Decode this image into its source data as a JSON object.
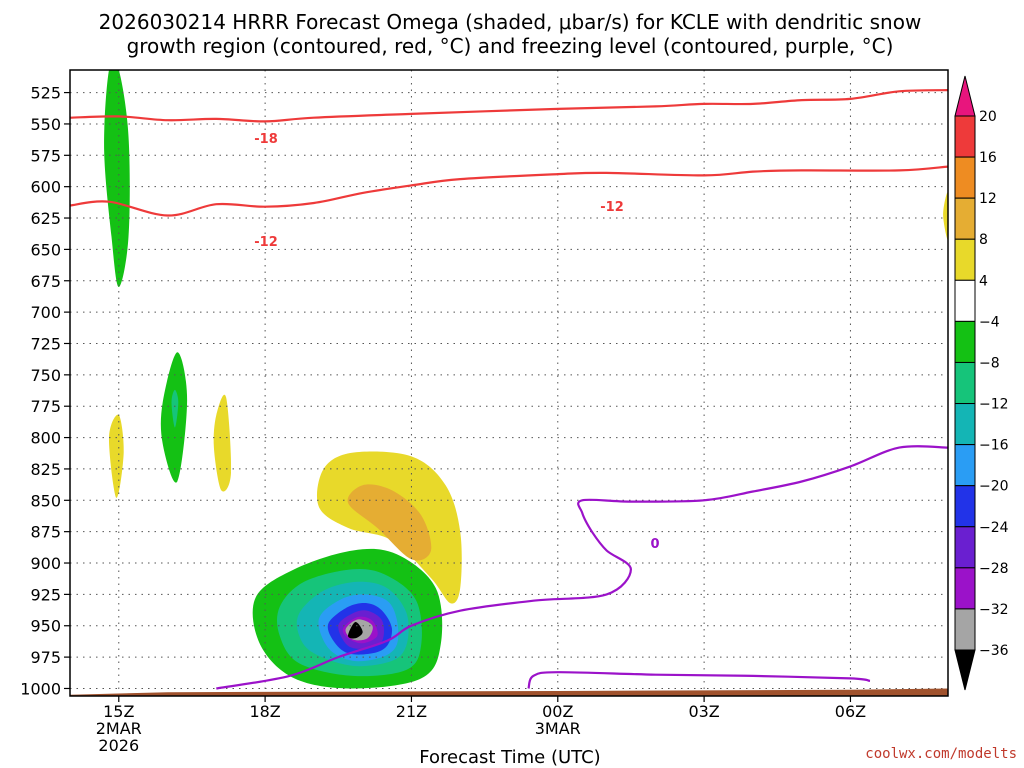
{
  "chart_data": {
    "type": "time-height cross section",
    "title_line1": "2026030214 HRRR Forecast Omega (shaded, μbar/s) for KCLE with dendritic snow",
    "title_line2": "growth region (contoured, red, °C) and freezing level (contoured, purple, °C)",
    "xlabel": "Forecast Time (UTC)",
    "credit": "coolwx.com/modelts",
    "x_ticks": [
      {
        "hour": 15,
        "label": "15Z",
        "sub1": "2MAR",
        "sub2": "2026"
      },
      {
        "hour": 18,
        "label": "18Z",
        "sub1": "",
        "sub2": ""
      },
      {
        "hour": 21,
        "label": "21Z",
        "sub1": "",
        "sub2": ""
      },
      {
        "hour": 24,
        "label": "00Z",
        "sub1": "3MAR",
        "sub2": ""
      },
      {
        "hour": 27,
        "label": "03Z",
        "sub1": "",
        "sub2": ""
      },
      {
        "hour": 30,
        "label": "06Z",
        "sub1": "",
        "sub2": ""
      }
    ],
    "xlim_hours": [
      14,
      32
    ],
    "y_ticks_hpa": [
      525,
      550,
      575,
      600,
      625,
      650,
      675,
      700,
      725,
      750,
      775,
      800,
      825,
      850,
      875,
      900,
      925,
      950,
      975,
      1000
    ],
    "ylim_hpa": [
      507,
      1006
    ],
    "colorbar": {
      "ticks": [
        20,
        16,
        12,
        8,
        4,
        -4,
        -8,
        -12,
        -16,
        -20,
        -24,
        -28,
        -32,
        -36
      ],
      "bins": [
        {
          "from": 16,
          "to": 20,
          "color": "#ee3a3a"
        },
        {
          "from": 12,
          "to": 16,
          "color": "#ee8c22"
        },
        {
          "from": 8,
          "to": 12,
          "color": "#e5ad33"
        },
        {
          "from": 4,
          "to": 8,
          "color": "#e8d92a"
        },
        {
          "from": -4,
          "to": 4,
          "color": "#ffffff"
        },
        {
          "from": -8,
          "to": -4,
          "color": "#14c114"
        },
        {
          "from": -12,
          "to": -8,
          "color": "#16c47a"
        },
        {
          "from": -16,
          "to": -12,
          "color": "#14b5b5"
        },
        {
          "from": -20,
          "to": -16,
          "color": "#2a9df4"
        },
        {
          "from": -24,
          "to": -20,
          "color": "#2233e8"
        },
        {
          "from": -28,
          "to": -24,
          "color": "#6a1fd0"
        },
        {
          "from": -32,
          "to": -28,
          "color": "#9b12c9"
        },
        {
          "from": -36,
          "to": -32,
          "color": "#a5a5a5"
        }
      ],
      "top_arrow_color": "#e8157d",
      "bottom_arrow_color": "#000000"
    },
    "contour_labels": {
      "dgz_upper": "-18",
      "dgz_lower_a": "-12",
      "dgz_lower_b": "-12",
      "freezing": "0"
    },
    "dgz_upper_line": [
      [
        14.0,
        545
      ],
      [
        15.0,
        544
      ],
      [
        16.0,
        547
      ],
      [
        17.0,
        546
      ],
      [
        18.0,
        548
      ],
      [
        19.0,
        545
      ],
      [
        21.0,
        542
      ],
      [
        24.0,
        538
      ],
      [
        26.0,
        536
      ],
      [
        27.0,
        534
      ],
      [
        28.0,
        534
      ],
      [
        29.0,
        531
      ],
      [
        30.0,
        530
      ],
      [
        31.0,
        524
      ],
      [
        32.0,
        523
      ]
    ],
    "dgz_lower_line": [
      [
        14.0,
        615
      ],
      [
        14.8,
        612
      ],
      [
        16.0,
        623
      ],
      [
        17.0,
        614
      ],
      [
        18.0,
        616
      ],
      [
        19.0,
        613
      ],
      [
        20.0,
        605
      ],
      [
        21.0,
        599
      ],
      [
        22.0,
        594
      ],
      [
        24.0,
        590
      ],
      [
        25.0,
        589
      ],
      [
        27.0,
        591
      ],
      [
        28.0,
        588
      ],
      [
        29.0,
        587
      ],
      [
        31.0,
        587
      ],
      [
        32.0,
        584
      ]
    ],
    "freezing_line": [
      [
        17.0,
        1000
      ],
      [
        18.5,
        990
      ],
      [
        19.5,
        975
      ],
      [
        20.5,
        962
      ],
      [
        21.0,
        950
      ],
      [
        22.0,
        938
      ],
      [
        23.5,
        930
      ],
      [
        25.0,
        925
      ],
      [
        25.5,
        905
      ],
      [
        25.0,
        890
      ],
      [
        24.7,
        875
      ],
      [
        24.5,
        860
      ],
      [
        24.5,
        850
      ],
      [
        25.5,
        851
      ],
      [
        27.0,
        850
      ],
      [
        28.0,
        843
      ],
      [
        29.0,
        835
      ],
      [
        30.0,
        823
      ],
      [
        31.0,
        808
      ],
      [
        32.0,
        808
      ]
    ],
    "freezing_line_low": [
      [
        23.4,
        1000
      ],
      [
        23.5,
        990
      ],
      [
        24.0,
        987
      ],
      [
        26.0,
        989
      ],
      [
        28.0,
        990
      ],
      [
        30.0,
        992
      ],
      [
        30.4,
        994
      ]
    ],
    "ground_terrain": [
      [
        14.0,
        1005
      ],
      [
        16.0,
        1003
      ],
      [
        24.0,
        1002
      ],
      [
        30.0,
        1001
      ],
      [
        32.0,
        1000
      ]
    ],
    "omega_features": [
      {
        "name": "upper-green-plume",
        "value": -6,
        "points": [
          [
            14.8,
            507
          ],
          [
            15.0,
            507
          ],
          [
            15.2,
            560
          ],
          [
            15.2,
            640
          ],
          [
            15.0,
            680
          ],
          [
            14.85,
            640
          ],
          [
            14.7,
            570
          ]
        ]
      },
      {
        "name": "mid-green-blob",
        "value": -6,
        "points": [
          [
            15.9,
            772
          ],
          [
            16.2,
            732
          ],
          [
            16.4,
            770
          ],
          [
            16.2,
            835
          ],
          [
            15.9,
            805
          ]
        ]
      },
      {
        "name": "mid-teal-spot",
        "value": -10,
        "points": [
          [
            16.08,
            772
          ],
          [
            16.15,
            762
          ],
          [
            16.22,
            772
          ],
          [
            16.15,
            792
          ]
        ]
      },
      {
        "name": "small-yellow-1",
        "value": 5,
        "points": [
          [
            14.8,
            800
          ],
          [
            15.0,
            782
          ],
          [
            15.1,
            812
          ],
          [
            14.95,
            848
          ]
        ]
      },
      {
        "name": "small-yellow-2",
        "value": 5,
        "points": [
          [
            17.0,
            782
          ],
          [
            17.2,
            768
          ],
          [
            17.3,
            828
          ],
          [
            17.1,
            842
          ],
          [
            16.95,
            808
          ]
        ]
      },
      {
        "name": "edge-yellow",
        "value": 5,
        "points": [
          [
            32.0,
            605
          ],
          [
            31.9,
            622
          ],
          [
            32.0,
            642
          ]
        ]
      },
      {
        "name": "yellow-updraft-outer",
        "value": 6,
        "points": [
          [
            19.1,
            855
          ],
          [
            19.2,
            825
          ],
          [
            19.8,
            812
          ],
          [
            21.0,
            815
          ],
          [
            21.7,
            838
          ],
          [
            22.0,
            875
          ],
          [
            22.0,
            920
          ],
          [
            21.8,
            932
          ],
          [
            21.4,
            912
          ],
          [
            20.6,
            882
          ],
          [
            19.7,
            872
          ]
        ]
      },
      {
        "name": "orange-updraft-inner",
        "value": 10,
        "points": [
          [
            19.7,
            852
          ],
          [
            20.0,
            838
          ],
          [
            20.6,
            842
          ],
          [
            21.2,
            862
          ],
          [
            21.4,
            890
          ],
          [
            21.0,
            897
          ],
          [
            20.3,
            872
          ]
        ]
      },
      {
        "name": "descent-green",
        "value": -6,
        "points": [
          [
            17.8,
            928
          ],
          [
            18.6,
            905
          ],
          [
            19.8,
            890
          ],
          [
            20.7,
            893
          ],
          [
            21.5,
            920
          ],
          [
            21.6,
            965
          ],
          [
            21.2,
            992
          ],
          [
            19.8,
            1000
          ],
          [
            18.6,
            992
          ],
          [
            17.9,
            965
          ]
        ]
      },
      {
        "name": "descent-mid-green",
        "value": -10,
        "points": [
          [
            18.3,
            935
          ],
          [
            18.8,
            915
          ],
          [
            19.8,
            905
          ],
          [
            20.5,
            910
          ],
          [
            21.1,
            930
          ],
          [
            21.2,
            965
          ],
          [
            20.9,
            985
          ],
          [
            19.8,
            990
          ],
          [
            18.7,
            980
          ],
          [
            18.3,
            958
          ]
        ]
      },
      {
        "name": "descent-teal",
        "value": -14,
        "points": [
          [
            18.7,
            940
          ],
          [
            19.2,
            922
          ],
          [
            19.9,
            915
          ],
          [
            20.5,
            920
          ],
          [
            20.9,
            940
          ],
          [
            20.9,
            965
          ],
          [
            20.6,
            978
          ],
          [
            19.8,
            982
          ],
          [
            19.0,
            972
          ],
          [
            18.7,
            958
          ]
        ]
      },
      {
        "name": "descent-blue",
        "value": -18,
        "points": [
          [
            19.1,
            945
          ],
          [
            19.5,
            930
          ],
          [
            20.0,
            925
          ],
          [
            20.5,
            930
          ],
          [
            20.7,
            945
          ],
          [
            20.7,
            965
          ],
          [
            20.4,
            975
          ],
          [
            19.8,
            978
          ],
          [
            19.3,
            968
          ]
        ]
      },
      {
        "name": "descent-dark-blue",
        "value": -22,
        "points": [
          [
            19.3,
            948
          ],
          [
            19.7,
            935
          ],
          [
            20.1,
            932
          ],
          [
            20.4,
            938
          ],
          [
            20.6,
            952
          ],
          [
            20.5,
            966
          ],
          [
            20.2,
            972
          ],
          [
            19.7,
            972
          ],
          [
            19.4,
            962
          ]
        ]
      },
      {
        "name": "descent-purple",
        "value": -26,
        "points": [
          [
            19.5,
            950
          ],
          [
            19.8,
            940
          ],
          [
            20.1,
            938
          ],
          [
            20.4,
            946
          ],
          [
            20.4,
            962
          ],
          [
            20.1,
            968
          ],
          [
            19.7,
            966
          ]
        ]
      },
      {
        "name": "descent-magenta",
        "value": -30,
        "points": [
          [
            19.6,
            952
          ],
          [
            19.9,
            943
          ],
          [
            20.2,
            946
          ],
          [
            20.3,
            958
          ],
          [
            20.0,
            964
          ],
          [
            19.7,
            960
          ]
        ]
      },
      {
        "name": "descent-gray",
        "value": -34,
        "points": [
          [
            19.65,
            953
          ],
          [
            19.9,
            945
          ],
          [
            20.2,
            950
          ],
          [
            20.1,
            960
          ],
          [
            19.8,
            961
          ]
        ]
      },
      {
        "name": "descent-black",
        "value": -38,
        "points": [
          [
            19.7,
            958
          ],
          [
            19.85,
            947
          ],
          [
            20.0,
            955
          ],
          [
            19.85,
            960
          ]
        ]
      }
    ]
  }
}
